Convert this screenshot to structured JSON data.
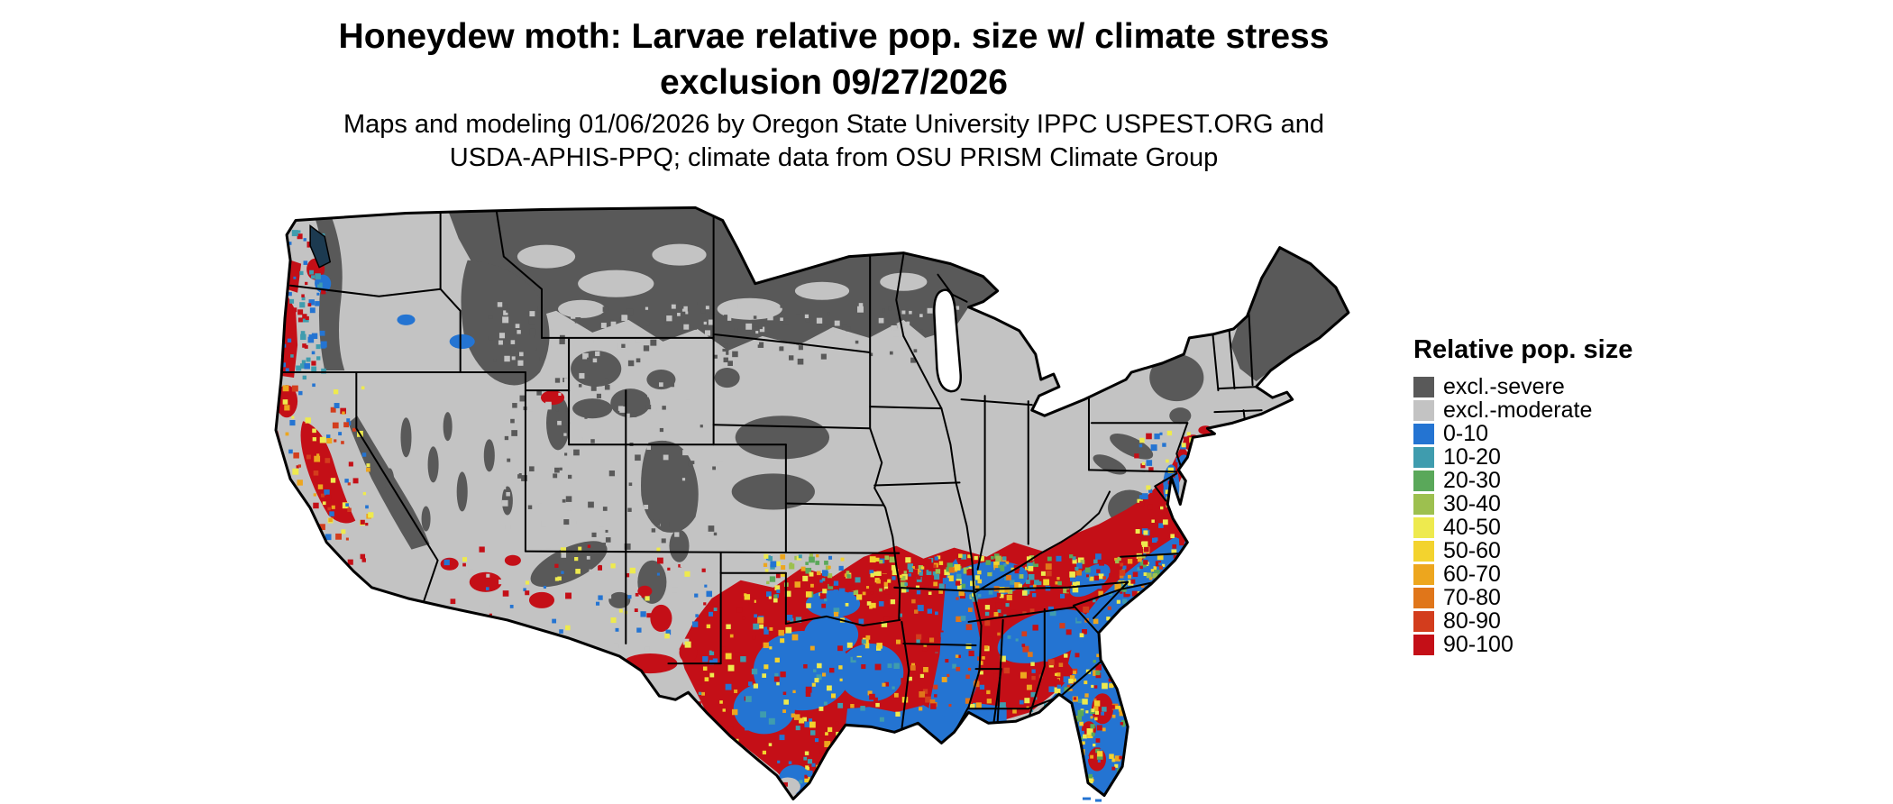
{
  "header": {
    "title_line1": "Honeydew moth: Larvae relative pop. size w/ climate stress",
    "title_line2": "exclusion 09/27/2026",
    "subtitle_line1": "Maps and modeling 01/06/2026 by Oregon State University IPPC USPEST.ORG and",
    "subtitle_line2": "USDA-APHIS-PPQ; climate data from OSU PRISM Climate Group"
  },
  "legend": {
    "title": "Relative pop. size",
    "entries": [
      {
        "label": "excl.-severe",
        "color": "#595959"
      },
      {
        "label": "excl.-moderate",
        "color": "#c3c3c3"
      },
      {
        "label": "0-10",
        "color": "#2474d2"
      },
      {
        "label": "10-20",
        "color": "#3f9cae"
      },
      {
        "label": "20-30",
        "color": "#5aa85a"
      },
      {
        "label": "30-40",
        "color": "#9dc04f"
      },
      {
        "label": "40-50",
        "color": "#eeea4e"
      },
      {
        "label": "50-60",
        "color": "#f3d32e"
      },
      {
        "label": "60-70",
        "color": "#eda61e"
      },
      {
        "label": "70-80",
        "color": "#e0761a"
      },
      {
        "label": "80-90",
        "color": "#d33d1d"
      },
      {
        "label": "90-100",
        "color": "#c40f17"
      }
    ]
  },
  "map": {
    "outline_color": "#000000",
    "background_color": "#ffffff"
  }
}
